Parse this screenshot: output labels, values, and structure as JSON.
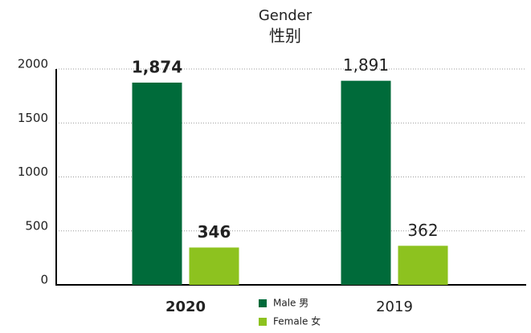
{
  "chart_data": {
    "type": "bar",
    "title": "Gender",
    "subtitle": "性别",
    "categories": [
      "2020",
      "2019"
    ],
    "series": [
      {
        "name": "Male 男",
        "color": "#006b3a",
        "values": [
          1874,
          1891
        ],
        "value_labels": [
          "1,874",
          "1,891"
        ]
      },
      {
        "name": "Female 女",
        "color": "#8dc21f",
        "values": [
          346,
          362
        ]
      }
    ],
    "ylim": [
      0,
      2000
    ],
    "yticks": [
      0,
      500,
      1000,
      1500,
      2000
    ],
    "grid": true
  }
}
